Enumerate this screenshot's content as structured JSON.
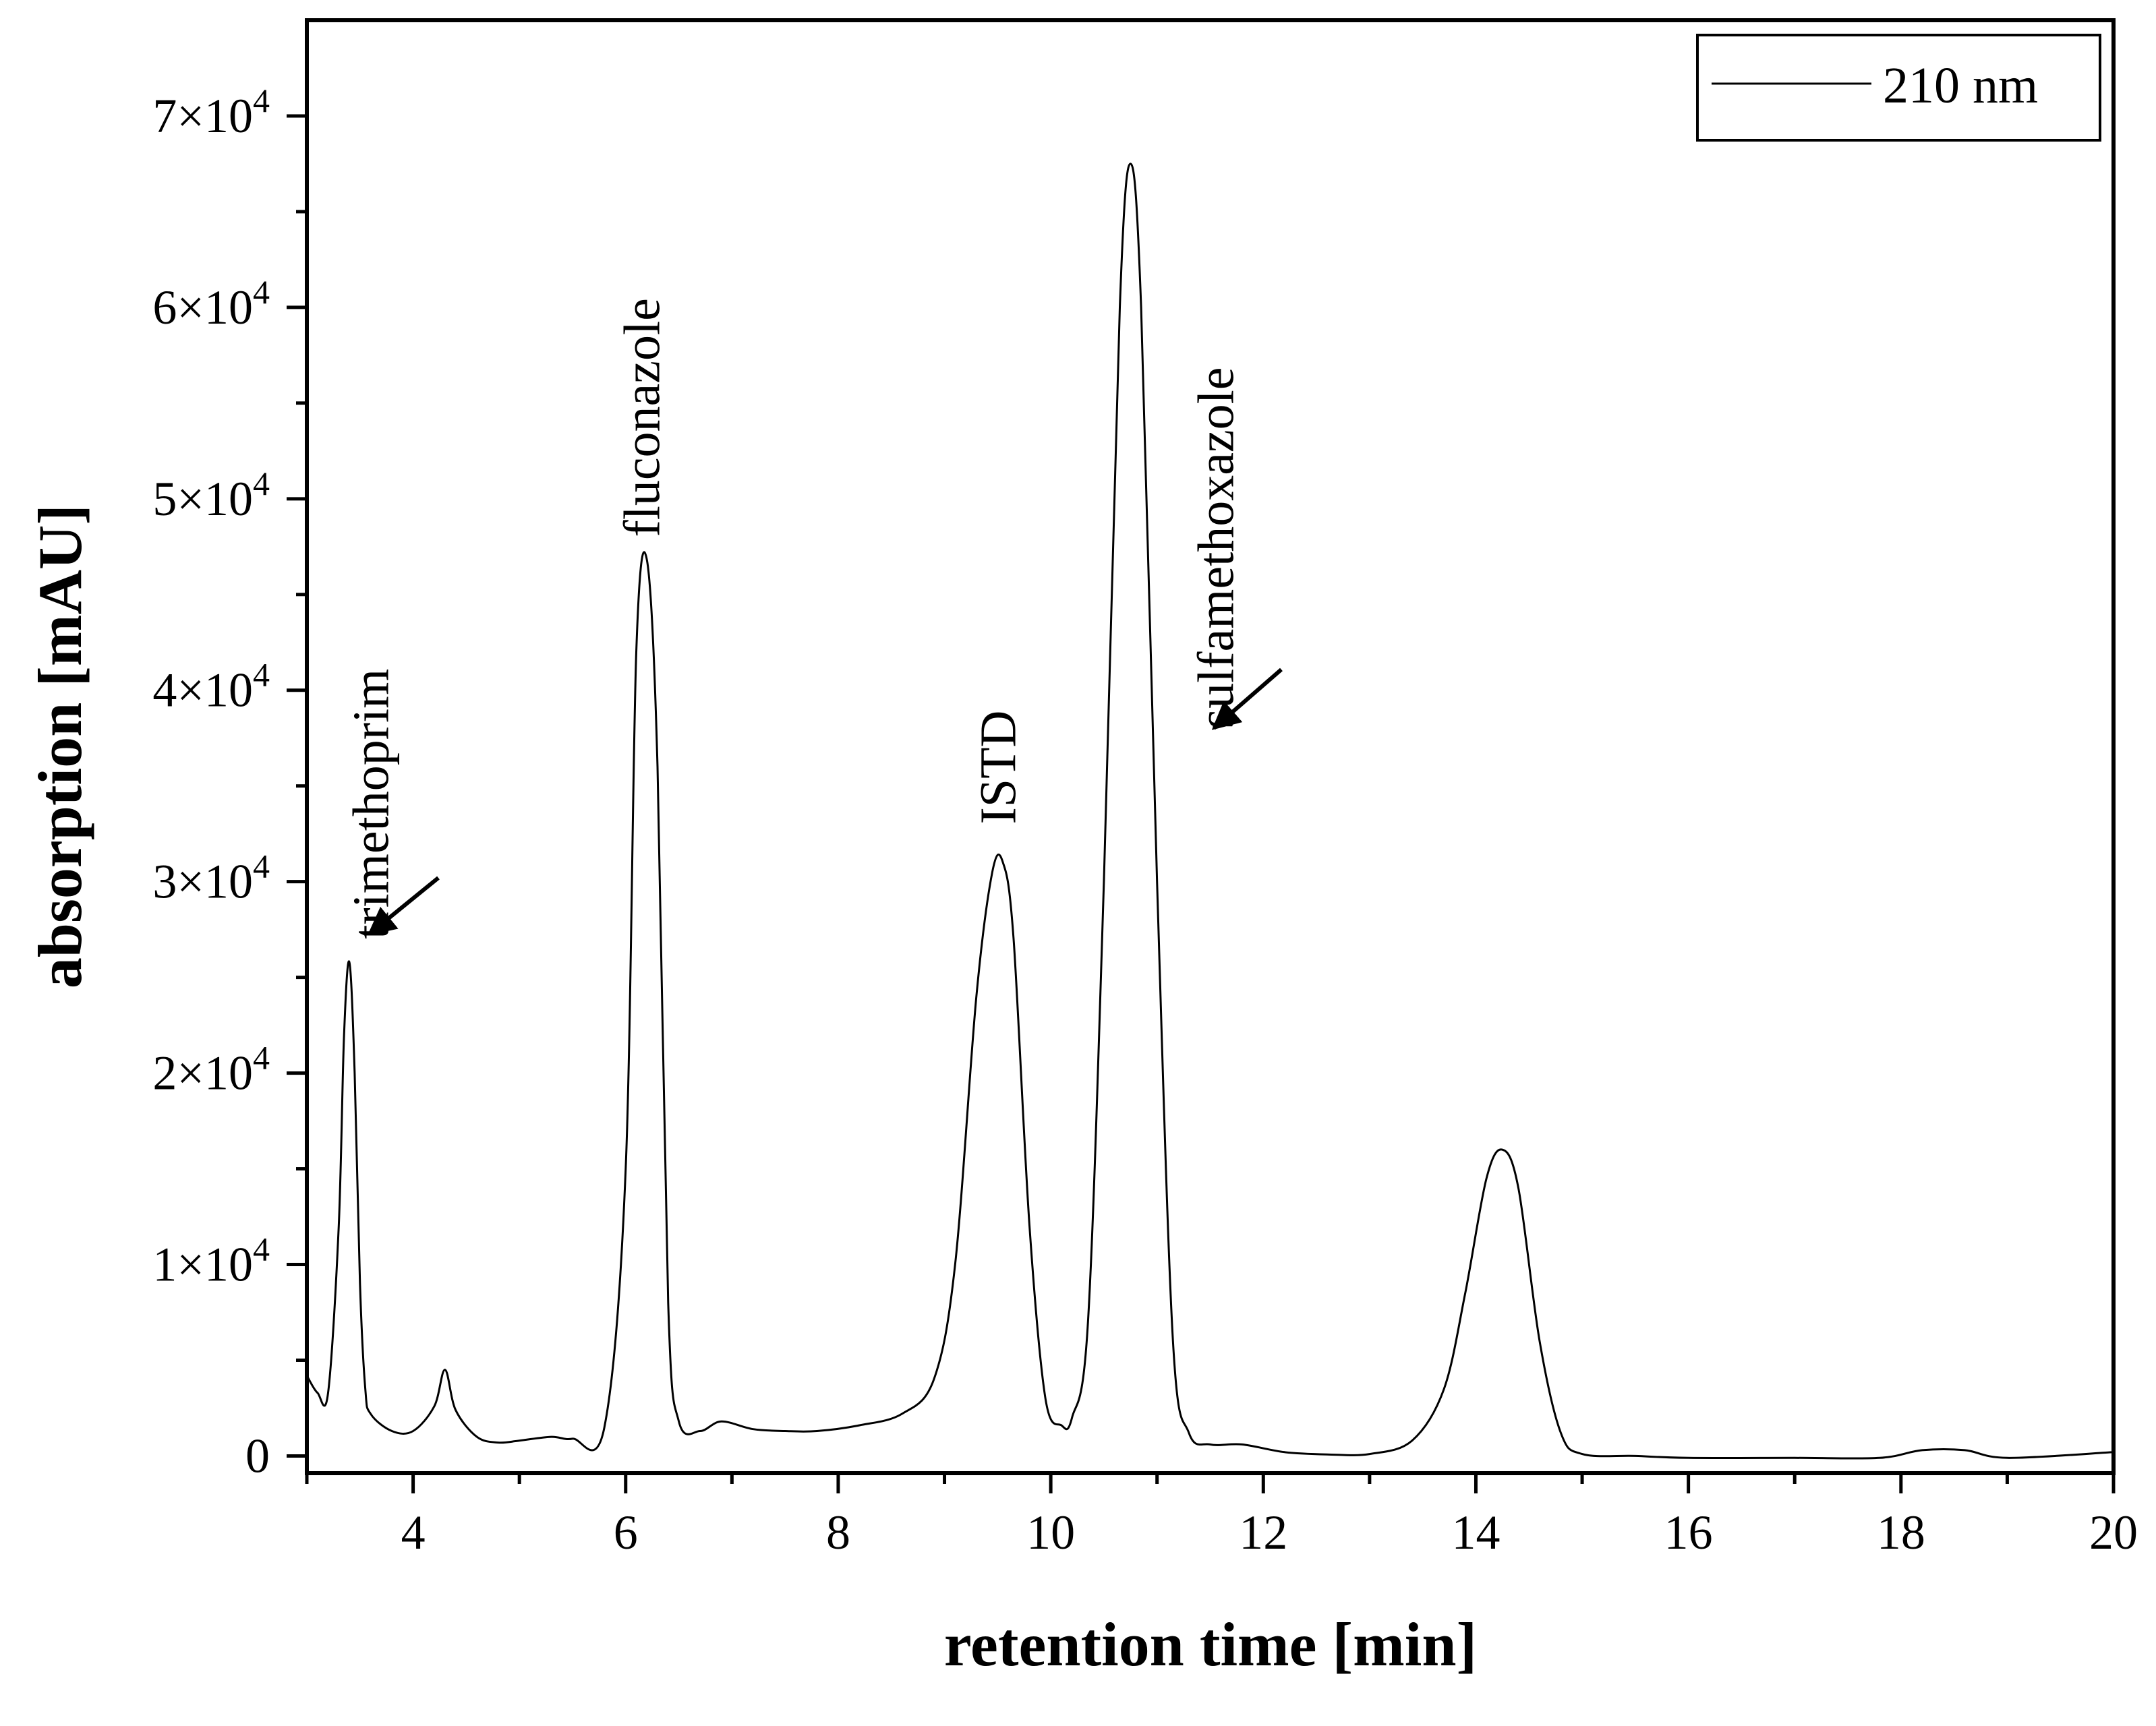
{
  "chart_data": {
    "type": "line",
    "title": "",
    "xlabel": "retention time [min]",
    "ylabel": "absorption [mAU]",
    "xlim": [
      3,
      20
    ],
    "ylim": [
      -900,
      75000
    ],
    "x_ticks": [
      4,
      6,
      8,
      10,
      12,
      14,
      16,
      18,
      20
    ],
    "y_ticks": [
      {
        "value": 0,
        "label": "0"
      },
      {
        "value": 10000,
        "mant": "1×10",
        "exp": "4"
      },
      {
        "value": 20000,
        "mant": "2×10",
        "exp": "4"
      },
      {
        "value": 30000,
        "mant": "3×10",
        "exp": "4"
      },
      {
        "value": 40000,
        "mant": "4×10",
        "exp": "4"
      },
      {
        "value": 50000,
        "mant": "5×10",
        "exp": "4"
      },
      {
        "value": 60000,
        "mant": "6×10",
        "exp": "4"
      },
      {
        "value": 70000,
        "mant": "7×10",
        "exp": "4"
      }
    ],
    "grid": false,
    "legend": {
      "position": "top-right",
      "entries": [
        "210 nm"
      ]
    },
    "line_color": "#000000",
    "series": [
      {
        "name": "210 nm",
        "x": [
          3.0,
          3.1,
          3.2,
          3.3,
          3.35,
          3.4,
          3.45,
          3.5,
          3.55,
          3.6,
          3.8,
          4.0,
          4.2,
          4.3,
          4.4,
          4.6,
          4.8,
          5.0,
          5.3,
          5.5,
          5.8,
          6.0,
          6.1,
          6.2,
          6.3,
          6.4,
          6.5,
          6.7,
          6.9,
          7.2,
          7.5,
          7.8,
          8.2,
          8.6,
          8.9,
          9.1,
          9.3,
          9.45,
          9.55,
          9.65,
          9.8,
          9.95,
          10.1,
          10.2,
          10.35,
          10.5,
          10.65,
          10.75,
          10.85,
          11.0,
          11.15,
          11.3,
          11.5,
          11.8,
          12.2,
          12.6,
          13.0,
          13.4,
          13.7,
          13.9,
          14.1,
          14.25,
          14.4,
          14.6,
          14.8,
          15.0,
          15.5,
          16.0,
          17.0,
          17.8,
          18.2,
          18.6,
          19.0,
          20.0
        ],
        "y": [
          4200,
          3300,
          3300,
          12000,
          22000,
          25800,
          20000,
          9000,
          3500,
          2200,
          1300,
          1300,
          2600,
          4500,
          2400,
          1000,
          700,
          800,
          1000,
          900,
          1500,
          15000,
          42000,
          46800,
          36000,
          8000,
          1800,
          1300,
          1800,
          1400,
          1300,
          1300,
          1600,
          2200,
          4000,
          10000,
          24000,
          30500,
          31000,
          27000,
          12000,
          3000,
          1600,
          2000,
          7000,
          30000,
          60000,
          67500,
          60000,
          30000,
          6000,
          1200,
          600,
          600,
          200,
          80,
          100,
          800,
          3500,
          8500,
          14500,
          16000,
          14000,
          6000,
          1200,
          100,
          0,
          -100,
          -100,
          -100,
          300,
          300,
          -100,
          200
        ]
      }
    ],
    "annotations": [
      {
        "text": "trimethoprim",
        "x": 3.6,
        "y": 27000
      },
      {
        "text": "fluconazole",
        "x": 6.15,
        "y": 48000
      },
      {
        "text": "ISTD",
        "x": 9.5,
        "y": 33000
      },
      {
        "text": "sulfamethoxazole",
        "x": 11.55,
        "y": 38000
      }
    ]
  }
}
